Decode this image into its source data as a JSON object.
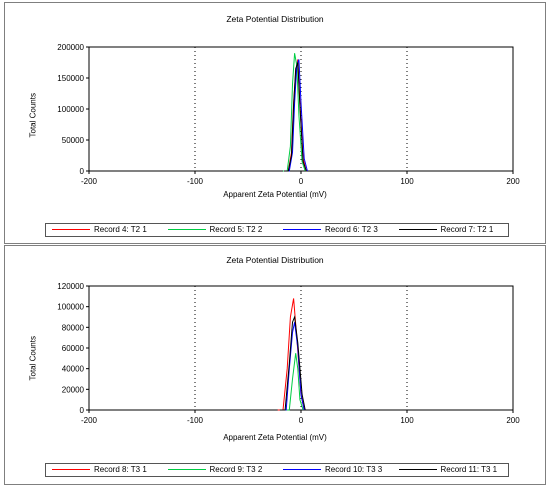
{
  "chart_data": [
    {
      "type": "line",
      "title": "Zeta Potential Distribution",
      "xlabel": "Apparent Zeta Potential (mV)",
      "ylabel": "Total Counts",
      "xlim": [
        -200,
        200
      ],
      "ylim": [
        0,
        200000
      ],
      "xticks": [
        "-200",
        "-100",
        "0",
        "100",
        "200"
      ],
      "yticks": [
        "0",
        "50000",
        "100000",
        "150000",
        "200000"
      ],
      "grid": true,
      "legend_position": "bottom",
      "series": [
        {
          "name": "Record 4: T2 1",
          "color": "#ff0000",
          "x": [
            -16,
            -12,
            -9,
            -7,
            -5,
            -3,
            -1,
            2,
            5
          ],
          "y": [
            0,
            0,
            30000,
            110000,
            160000,
            180000,
            110000,
            20000,
            0
          ]
        },
        {
          "name": "Record 5: T2 2",
          "color": "#00cc44",
          "x": [
            -17,
            -13,
            -10,
            -8,
            -6,
            -4,
            -2,
            1,
            4
          ],
          "y": [
            0,
            0,
            40000,
            140000,
            190000,
            170000,
            90000,
            15000,
            0
          ]
        },
        {
          "name": "Record 6: T2 3",
          "color": "#0000ff",
          "x": [
            -15,
            -11,
            -8,
            -6,
            -4,
            -2,
            0,
            3,
            6
          ],
          "y": [
            0,
            0,
            30000,
            110000,
            170000,
            180000,
            110000,
            20000,
            0
          ]
        },
        {
          "name": "Record 7: T2 1",
          "color": "#000000",
          "x": [
            -16,
            -12,
            -9,
            -7,
            -5,
            -3,
            -1,
            2,
            5
          ],
          "y": [
            0,
            0,
            25000,
            105000,
            165000,
            175000,
            105000,
            15000,
            0
          ]
        }
      ]
    },
    {
      "type": "line",
      "title": "Zeta Potential Distribution",
      "xlabel": "Apparent Zeta Potential (mV)",
      "ylabel": "Total Counts",
      "xlim": [
        -200,
        200
      ],
      "ylim": [
        0,
        120000
      ],
      "xticks": [
        "-200",
        "-100",
        "0",
        "100",
        "200"
      ],
      "yticks": [
        "0",
        "20000",
        "40000",
        "60000",
        "80000",
        "100000",
        "120000"
      ],
      "grid": true,
      "legend_position": "bottom",
      "series": [
        {
          "name": "Record 8: T3 1",
          "color": "#ff0000",
          "x": [
            -22,
            -17,
            -13,
            -10,
            -7,
            -4,
            0,
            3
          ],
          "y": [
            0,
            0,
            40000,
            90000,
            108000,
            70000,
            15000,
            0
          ]
        },
        {
          "name": "Record 9: T3 2",
          "color": "#00cc44",
          "x": [
            -15,
            -11,
            -8,
            -5,
            -3,
            -1,
            2
          ],
          "y": [
            0,
            0,
            30000,
            55000,
            40000,
            10000,
            0
          ]
        },
        {
          "name": "Record 10: T3 3",
          "color": "#0000ff",
          "x": [
            -18,
            -14,
            -11,
            -8,
            -6,
            -3,
            0,
            3
          ],
          "y": [
            0,
            0,
            40000,
            75000,
            85000,
            60000,
            15000,
            0
          ]
        },
        {
          "name": "Record 11: T3 1",
          "color": "#000000",
          "x": [
            -20,
            -15,
            -11,
            -8,
            -6,
            -3,
            1,
            4
          ],
          "y": [
            0,
            0,
            45000,
            85000,
            90000,
            65000,
            15000,
            0
          ]
        }
      ]
    }
  ]
}
